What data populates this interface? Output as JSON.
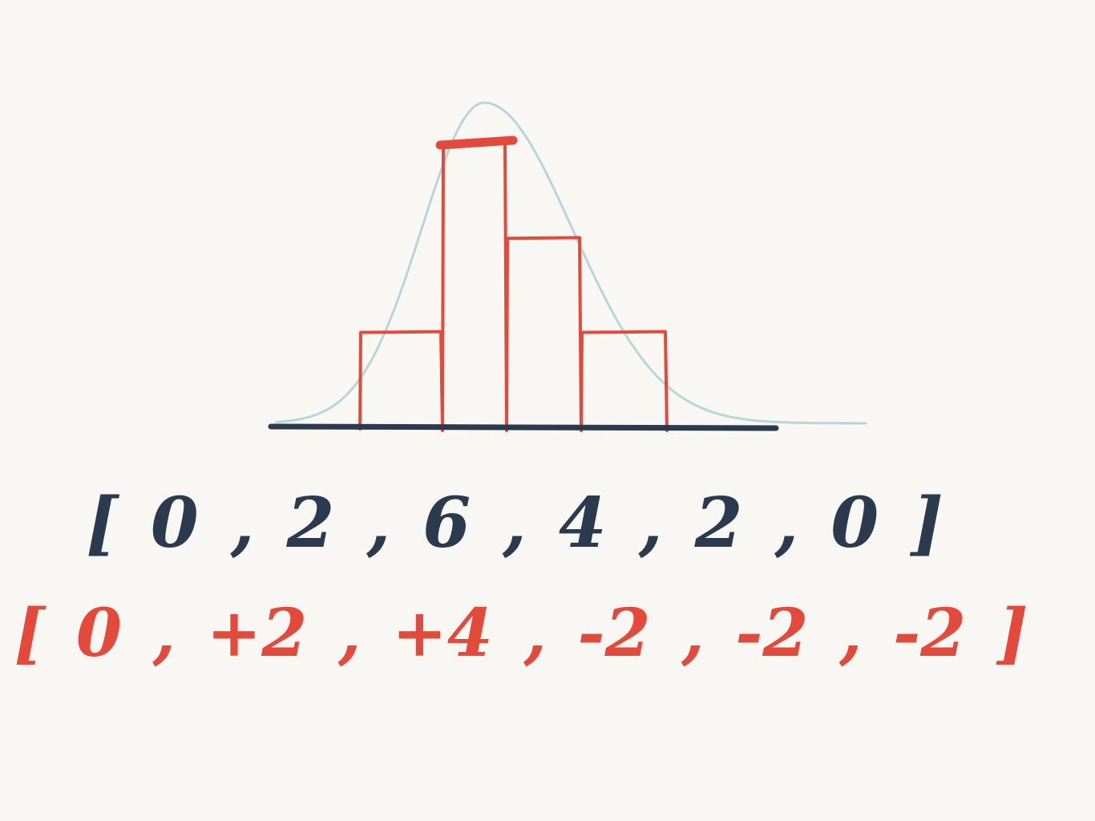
{
  "colors": {
    "background": "#f8f7f3",
    "histogram": "#e34a3b",
    "curve": "#b9d6d6",
    "axis": "#2b3a4e",
    "counts_text": "#2b3a4e",
    "deltas_text": "#e34a3b"
  },
  "chart_data": {
    "type": "bar",
    "values": [
      2,
      6,
      4,
      2
    ],
    "curve": "bell"
  },
  "counts": {
    "open": "[",
    "close": "]",
    "items": [
      "0",
      "2",
      "6",
      "4",
      "2",
      "0"
    ]
  },
  "deltas": {
    "open": "[",
    "close": "]",
    "items": [
      "0",
      "+2",
      "+4",
      "-2",
      "-2",
      "-2"
    ]
  }
}
